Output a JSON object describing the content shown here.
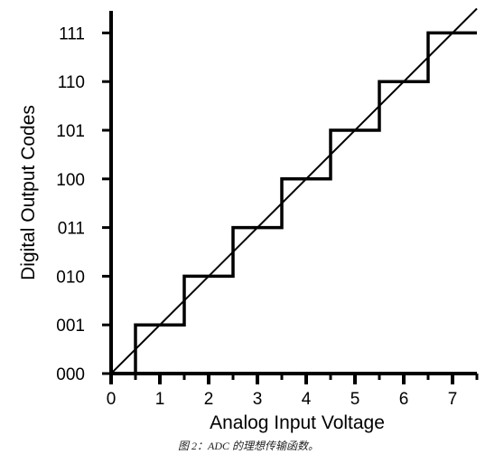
{
  "chart_data": {
    "type": "line",
    "title": "",
    "xlabel": "Analog Input Voltage",
    "ylabel": "Digital Output Codes",
    "caption": "图 2：ADC 的理想传输函数。",
    "xlim": [
      0,
      7.5
    ],
    "ylim": [
      0,
      7.2
    ],
    "x_ticks": [
      "0",
      "1",
      "2",
      "3",
      "4",
      "5",
      "6",
      "7"
    ],
    "y_ticks": [
      "000",
      "001",
      "010",
      "011",
      "100",
      "101",
      "110",
      "111"
    ],
    "grid": false,
    "series": [
      {
        "style": "step",
        "color": "#000000",
        "x": [
          0,
          0.5,
          0.5,
          1.5,
          1.5,
          2.5,
          2.5,
          3.5,
          3.5,
          4.5,
          4.5,
          5.5,
          5.5,
          6.5,
          6.5,
          7.5
        ],
        "y": [
          0,
          0,
          1,
          1,
          2,
          2,
          3,
          3,
          4,
          4,
          5,
          5,
          6,
          6,
          7,
          7
        ]
      },
      {
        "style": "diagonal",
        "color": "#000000",
        "x": [
          0,
          7.5
        ],
        "y": [
          0,
          7.5
        ]
      }
    ]
  }
}
